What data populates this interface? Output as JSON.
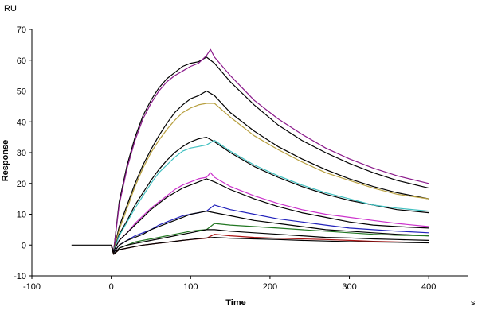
{
  "chart_data": {
    "type": "line",
    "xlabel": "Time",
    "ylabel": "Response",
    "x_unit": "s",
    "y_unit": "RU",
    "xlim": [
      -100,
      450
    ],
    "ylim": [
      -10,
      70
    ],
    "xticks": [
      -100,
      0,
      100,
      200,
      300,
      400
    ],
    "yticks": [
      -10,
      0,
      10,
      20,
      30,
      40,
      50,
      60,
      70
    ],
    "grid": false,
    "legend": "none",
    "series": [
      {
        "color": "#000000",
        "x": [
          -50,
          0,
          3,
          10,
          20,
          30,
          40,
          50,
          60,
          70,
          80,
          90,
          100,
          110,
          120,
          130,
          150,
          180,
          210,
          240,
          270,
          300,
          330,
          360,
          400
        ],
        "y": [
          0,
          0,
          -2,
          14,
          26,
          35,
          42,
          47,
          51,
          54,
          56,
          58,
          59,
          59.5,
          61,
          59,
          53,
          45.5,
          39,
          34,
          30,
          26.5,
          23.5,
          21,
          18.5
        ]
      },
      {
        "color": "#8b1a8b",
        "x": [
          0,
          3,
          10,
          20,
          30,
          40,
          50,
          60,
          70,
          80,
          90,
          100,
          110,
          120,
          125,
          130,
          150,
          180,
          210,
          240,
          270,
          300,
          330,
          360,
          400
        ],
        "y": [
          0,
          -2,
          13,
          25,
          34,
          41,
          46,
          50,
          53,
          55,
          56.5,
          58,
          59,
          61.5,
          63.5,
          61,
          55,
          47,
          41,
          36,
          31.5,
          28,
          25,
          22.5,
          20
        ]
      },
      {
        "color": "#000000",
        "x": [
          0,
          3,
          10,
          20,
          30,
          40,
          50,
          60,
          70,
          80,
          90,
          100,
          110,
          120,
          130,
          150,
          180,
          210,
          240,
          270,
          300,
          330,
          360,
          400
        ],
        "y": [
          0,
          -2,
          6,
          13,
          20,
          26,
          31,
          35.5,
          39.5,
          43,
          45.5,
          47.5,
          48.5,
          50,
          48.5,
          43,
          37,
          32,
          28,
          24.5,
          21.5,
          19,
          17,
          15
        ]
      },
      {
        "color": "#b8a040",
        "x": [
          0,
          3,
          10,
          20,
          30,
          40,
          50,
          60,
          70,
          80,
          90,
          100,
          110,
          120,
          130,
          150,
          180,
          210,
          240,
          270,
          300,
          330,
          360,
          400
        ],
        "y": [
          0,
          -2,
          5,
          12,
          19,
          25,
          30,
          34,
          37.5,
          40.5,
          43,
          44.5,
          45.5,
          46,
          46,
          41.5,
          35.5,
          31,
          27,
          23.5,
          21,
          18.5,
          16.5,
          15
        ]
      },
      {
        "color": "#000000",
        "x": [
          0,
          3,
          10,
          20,
          30,
          40,
          50,
          60,
          70,
          80,
          90,
          100,
          110,
          120,
          130,
          150,
          180,
          210,
          240,
          270,
          300,
          330,
          360,
          400
        ],
        "y": [
          0,
          -2,
          3.5,
          8,
          13,
          17,
          21,
          24.5,
          27.5,
          30,
          32,
          33.5,
          34.5,
          35,
          33.5,
          30,
          25.5,
          22,
          19,
          16.5,
          14.5,
          13,
          11.5,
          10.5
        ]
      },
      {
        "color": "#40c0c0",
        "x": [
          0,
          3,
          10,
          20,
          30,
          40,
          50,
          60,
          70,
          80,
          90,
          100,
          110,
          120,
          130,
          150,
          180,
          210,
          240,
          270,
          300,
          330,
          360,
          400
        ],
        "y": [
          0,
          -2,
          3,
          7.5,
          12,
          16,
          20,
          23.5,
          26,
          28.5,
          30.5,
          31.5,
          32,
          32.5,
          34,
          30.5,
          26,
          22.5,
          19.5,
          17,
          15,
          13,
          12,
          11
        ]
      },
      {
        "color": "#cc33cc",
        "x": [
          0,
          3,
          10,
          20,
          30,
          40,
          50,
          60,
          70,
          80,
          90,
          100,
          110,
          120,
          125,
          130,
          150,
          180,
          210,
          240,
          270,
          300,
          330,
          360,
          400
        ],
        "y": [
          0,
          -2,
          1.5,
          4,
          7,
          9.5,
          12,
          14,
          16,
          18,
          19.5,
          20.5,
          21.5,
          22,
          23.5,
          22,
          19,
          16,
          13.5,
          11.5,
          10,
          9,
          8,
          7,
          6
        ]
      },
      {
        "color": "#000000",
        "x": [
          0,
          3,
          10,
          20,
          30,
          40,
          50,
          60,
          70,
          80,
          90,
          100,
          110,
          120,
          130,
          150,
          180,
          210,
          240,
          270,
          300,
          330,
          360,
          400
        ],
        "y": [
          0,
          -2,
          1.5,
          4,
          6.5,
          9,
          11.5,
          13.5,
          15.5,
          17,
          18.5,
          19.5,
          20.5,
          21.5,
          20.5,
          18,
          15,
          12.5,
          10.5,
          9,
          7.5,
          6.5,
          6,
          5.5
        ]
      },
      {
        "color": "#2222bb",
        "x": [
          0,
          3,
          10,
          20,
          30,
          40,
          50,
          60,
          70,
          80,
          90,
          100,
          110,
          120,
          130,
          150,
          180,
          210,
          240,
          270,
          300,
          330,
          360,
          400
        ],
        "y": [
          0,
          -2.5,
          0,
          1.5,
          3,
          4,
          5,
          6.5,
          7.5,
          8.5,
          9.5,
          10,
          10.5,
          11,
          13,
          11.5,
          10,
          8.5,
          7.5,
          6.5,
          5.5,
          5,
          4.5,
          4
        ]
      },
      {
        "color": "#000000",
        "x": [
          0,
          3,
          10,
          20,
          30,
          40,
          50,
          60,
          70,
          80,
          90,
          100,
          110,
          120,
          130,
          150,
          180,
          210,
          240,
          270,
          300,
          330,
          360,
          400
        ],
        "y": [
          0,
          -2.5,
          0,
          1.5,
          2.5,
          3.5,
          5,
          6,
          7,
          8,
          9,
          10,
          10.5,
          11,
          10.5,
          9.5,
          8,
          7,
          6,
          5,
          4.5,
          4,
          3.5,
          3
        ]
      },
      {
        "color": "#227722",
        "x": [
          0,
          3,
          10,
          20,
          30,
          40,
          50,
          60,
          70,
          80,
          90,
          100,
          110,
          120,
          130,
          150,
          180,
          210,
          240,
          270,
          300,
          330,
          360,
          400
        ],
        "y": [
          0,
          -3,
          -1,
          0,
          1,
          1.5,
          2,
          2.5,
          3,
          3.5,
          4,
          4.5,
          4.8,
          5,
          7,
          6.5,
          6,
          5.5,
          5,
          4.5,
          4,
          3.5,
          3.2,
          3
        ]
      },
      {
        "color": "#000000",
        "x": [
          0,
          3,
          10,
          20,
          30,
          40,
          50,
          60,
          70,
          80,
          90,
          100,
          110,
          120,
          130,
          150,
          180,
          210,
          240,
          270,
          300,
          330,
          360,
          400
        ],
        "y": [
          0,
          -3,
          -1,
          0,
          0.5,
          1,
          1.5,
          2,
          2.5,
          3,
          3.5,
          4,
          4.5,
          5,
          5,
          4.5,
          4,
          3.5,
          3,
          2.5,
          2.3,
          2,
          1.8,
          1.5
        ]
      },
      {
        "color": "#aa1111",
        "x": [
          0,
          3,
          10,
          20,
          30,
          40,
          50,
          60,
          70,
          80,
          90,
          100,
          110,
          120,
          130,
          150,
          180,
          210,
          240,
          270,
          300,
          330,
          360,
          400
        ],
        "y": [
          0,
          -3,
          -1.5,
          -1,
          -0.5,
          0,
          0.3,
          0.6,
          0.9,
          1.2,
          1.5,
          1.8,
          2,
          2.2,
          3.5,
          3,
          2.5,
          2.2,
          2,
          1.8,
          1.5,
          1.2,
          1,
          0.8
        ]
      },
      {
        "color": "#000000",
        "x": [
          0,
          3,
          10,
          20,
          30,
          40,
          50,
          60,
          70,
          80,
          90,
          100,
          110,
          120,
          130,
          150,
          180,
          210,
          240,
          270,
          300,
          330,
          360,
          400
        ],
        "y": [
          0,
          -3,
          -1.5,
          -1,
          -0.5,
          0,
          0.3,
          0.6,
          0.9,
          1.2,
          1.5,
          1.8,
          2.1,
          2.3,
          2.5,
          2.2,
          2,
          1.8,
          1.5,
          1.3,
          1.1,
          1,
          0.9,
          0.7
        ]
      }
    ]
  }
}
